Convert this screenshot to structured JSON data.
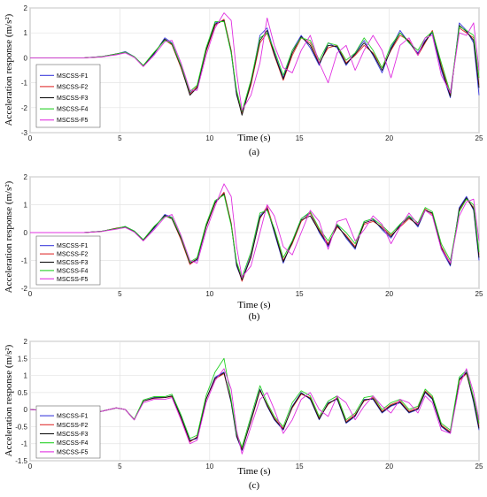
{
  "figure": {
    "x_axis_label": "Time (s)",
    "y_axis_label": "Acceleration response (m/s²)"
  },
  "chart_data": [
    {
      "type": "line",
      "caption": "(a)",
      "xlabel": "Time (s)",
      "ylabel": "Acceleration response (m/s²)",
      "xlim": [
        0,
        25
      ],
      "ylim": [
        -3,
        2
      ],
      "xticks": [
        0,
        5,
        10,
        15,
        20,
        25
      ],
      "yticks": [
        -3,
        -2,
        -1,
        0,
        1,
        2
      ],
      "grid": true,
      "legend_position": "bottom-left",
      "x": [
        0,
        1,
        2,
        3,
        4,
        4.8,
        5.3,
        5.8,
        6.3,
        6.9,
        7.5,
        7.9,
        8.4,
        8.9,
        9.3,
        9.8,
        10.3,
        10.8,
        11.2,
        11.5,
        11.8,
        12.3,
        12.8,
        13.2,
        13.6,
        14.1,
        14.6,
        15.1,
        15.6,
        16.1,
        16.6,
        17.1,
        17.6,
        18.1,
        18.6,
        19.1,
        19.6,
        20.1,
        20.6,
        21.1,
        21.6,
        22.0,
        22.4,
        22.9,
        23.4,
        23.9,
        24.3,
        24.7,
        25
      ],
      "series": [
        {
          "name": "MSCSS-F1",
          "color": "#3b3bdc",
          "values": [
            0,
            0,
            0,
            0,
            0.05,
            0.15,
            0.25,
            0.05,
            -0.3,
            0.15,
            0.8,
            0.6,
            -0.3,
            -1.4,
            -1.2,
            0.3,
            1.4,
            1.5,
            0.2,
            -1.5,
            -2.2,
            -1.0,
            0.9,
            1.2,
            0.2,
            -0.8,
            0.3,
            0.9,
            0.4,
            -0.3,
            0.6,
            0.4,
            -0.3,
            0.2,
            0.7,
            0.1,
            -0.6,
            0.4,
            1.1,
            0.6,
            0.2,
            0.7,
            1.0,
            -0.5,
            -1.6,
            1.4,
            1.1,
            0.6,
            -1.5
          ]
        },
        {
          "name": "MSCSS-F2",
          "color": "#e03030",
          "values": [
            0,
            0,
            0,
            0,
            0.04,
            0.15,
            0.22,
            0.04,
            -0.32,
            0.2,
            0.72,
            0.52,
            -0.4,
            -1.45,
            -1.15,
            0.25,
            1.3,
            1.55,
            0.3,
            -1.4,
            -2.25,
            -1.1,
            0.6,
            1.0,
            0.1,
            -0.9,
            0.1,
            0.8,
            0.6,
            -0.2,
            0.4,
            0.5,
            -0.2,
            0.1,
            0.5,
            0.2,
            -0.4,
            0.3,
            0.9,
            0.7,
            0.1,
            0.6,
            1.1,
            -0.3,
            -1.5,
            1.2,
            1.0,
            0.8,
            -1.1
          ]
        },
        {
          "name": "MSCSS-F3",
          "color": "#111111",
          "values": [
            0,
            0,
            0,
            0,
            0.05,
            0.16,
            0.22,
            0.03,
            -0.32,
            0.18,
            0.75,
            0.55,
            -0.35,
            -1.5,
            -1.2,
            0.3,
            1.35,
            1.5,
            0.25,
            -1.45,
            -2.3,
            -1.0,
            0.7,
            1.1,
            0.15,
            -0.85,
            0.2,
            0.85,
            0.5,
            -0.25,
            0.5,
            0.45,
            -0.25,
            0.15,
            0.6,
            0.15,
            -0.5,
            0.35,
            1.0,
            0.65,
            0.15,
            0.65,
            1.05,
            -0.4,
            -1.55,
            1.3,
            1.05,
            0.7,
            -1.2
          ]
        },
        {
          "name": "MSCSS-F4",
          "color": "#25d025",
          "values": [
            0,
            0,
            0,
            0,
            0.05,
            0.15,
            0.23,
            0.05,
            -0.3,
            0.22,
            0.7,
            0.58,
            -0.3,
            -1.35,
            -1.1,
            0.4,
            1.45,
            1.45,
            0.2,
            -1.3,
            -2.15,
            -0.9,
            0.8,
            1.0,
            0.3,
            -0.7,
            0.3,
            0.8,
            0.7,
            -0.1,
            0.6,
            0.5,
            -0.1,
            0.2,
            0.8,
            0.3,
            -0.4,
            0.5,
            1.0,
            0.6,
            0.3,
            0.8,
            1.05,
            -0.2,
            -1.4,
            1.25,
            1.1,
            0.9,
            -0.8
          ]
        },
        {
          "name": "MSCSS-F5",
          "color": "#e030e0",
          "values": [
            0,
            0,
            0,
            0,
            0.04,
            0.12,
            0.2,
            0.02,
            -0.35,
            0.1,
            0.65,
            0.7,
            -0.2,
            -1.3,
            -1.3,
            0.1,
            1.2,
            1.8,
            1.5,
            -0.6,
            -2.1,
            -1.5,
            -0.2,
            1.6,
            0.5,
            -0.4,
            -0.6,
            0.3,
            0.9,
            -0.2,
            -1.0,
            0.2,
            0.5,
            -0.5,
            0.3,
            0.9,
            0.3,
            -0.8,
            0.5,
            0.8,
            0.1,
            0.8,
            0.9,
            -0.7,
            -1.4,
            1.0,
            0.9,
            1.4,
            -0.5
          ]
        }
      ]
    },
    {
      "type": "line",
      "caption": "(b)",
      "xlabel": "Time (s)",
      "ylabel": "Acceleration response (m/s²)",
      "xlim": [
        0,
        25
      ],
      "ylim": [
        -2,
        2
      ],
      "xticks": [
        0,
        5,
        10,
        15,
        20,
        25
      ],
      "yticks": [
        -2,
        -1,
        0,
        1,
        2
      ],
      "grid": true,
      "legend_position": "bottom-left",
      "x": [
        0,
        1,
        2,
        3,
        4,
        4.8,
        5.3,
        5.8,
        6.3,
        6.9,
        7.5,
        7.9,
        8.4,
        8.9,
        9.3,
        9.8,
        10.3,
        10.8,
        11.2,
        11.5,
        11.8,
        12.3,
        12.8,
        13.2,
        13.6,
        14.1,
        14.6,
        15.1,
        15.6,
        16.1,
        16.6,
        17.1,
        17.6,
        18.1,
        18.6,
        19.1,
        19.6,
        20.1,
        20.6,
        21.1,
        21.6,
        22.0,
        22.4,
        22.9,
        23.4,
        23.9,
        24.3,
        24.7,
        25
      ],
      "series": [
        {
          "name": "MSCSS-F1",
          "color": "#3b3bdc",
          "values": [
            0,
            0,
            0,
            0,
            0.05,
            0.15,
            0.22,
            0.06,
            -0.25,
            0.15,
            0.65,
            0.55,
            -0.2,
            -1.1,
            -1.0,
            0.2,
            1.1,
            1.4,
            0.3,
            -1.2,
            -1.7,
            -0.8,
            0.6,
            0.9,
            0.0,
            -1.1,
            -0.3,
            0.5,
            0.7,
            0.0,
            -0.5,
            0.3,
            -0.2,
            -0.6,
            0.4,
            0.5,
            0.1,
            -0.2,
            0.3,
            0.6,
            0.2,
            0.8,
            0.7,
            -0.6,
            -1.2,
            0.9,
            1.3,
            0.8,
            -1.0
          ]
        },
        {
          "name": "MSCSS-F2",
          "color": "#e03030",
          "values": [
            0,
            0,
            0,
            0,
            0.04,
            0.16,
            0.21,
            0.05,
            -0.27,
            0.2,
            0.6,
            0.5,
            -0.25,
            -1.15,
            -0.95,
            0.2,
            1.05,
            1.45,
            0.35,
            -1.1,
            -1.75,
            -0.85,
            0.5,
            0.95,
            0.1,
            -1.0,
            -0.4,
            0.4,
            0.7,
            0.1,
            -0.4,
            0.2,
            -0.1,
            -0.5,
            0.3,
            0.4,
            0.2,
            -0.1,
            0.2,
            0.5,
            0.3,
            0.85,
            0.65,
            -0.5,
            -1.1,
            0.8,
            1.2,
            0.9,
            -0.8
          ]
        },
        {
          "name": "MSCSS-F3",
          "color": "#111111",
          "values": [
            0,
            0,
            0,
            0,
            0.05,
            0.15,
            0.2,
            0.04,
            -0.27,
            0.18,
            0.62,
            0.5,
            -0.2,
            -1.1,
            -0.95,
            0.22,
            1.08,
            1.4,
            0.3,
            -1.15,
            -1.7,
            -0.9,
            0.55,
            0.85,
            0.05,
            -1.05,
            -0.35,
            0.45,
            0.6,
            0.05,
            -0.45,
            0.25,
            -0.15,
            -0.55,
            0.35,
            0.45,
            0.15,
            -0.15,
            0.25,
            0.55,
            0.25,
            0.8,
            0.7,
            -0.55,
            -1.15,
            0.85,
            1.25,
            0.85,
            -0.9
          ]
        },
        {
          "name": "MSCSS-F4",
          "color": "#25d025",
          "values": [
            0,
            0,
            0,
            0,
            0.05,
            0.14,
            0.22,
            0.06,
            -0.25,
            0.22,
            0.58,
            0.55,
            -0.15,
            -1.05,
            -0.9,
            0.3,
            1.15,
            1.35,
            0.25,
            -1.05,
            -1.6,
            -0.7,
            0.7,
            0.8,
            0.15,
            -0.9,
            -0.3,
            0.5,
            0.75,
            0.15,
            -0.3,
            0.3,
            0.0,
            -0.4,
            0.4,
            0.5,
            0.25,
            -0.05,
            0.3,
            0.6,
            0.35,
            0.9,
            0.75,
            -0.4,
            -1.0,
            0.75,
            1.2,
            1.0,
            -0.7
          ]
        },
        {
          "name": "MSCSS-F5",
          "color": "#e030e0",
          "values": [
            0,
            0,
            0,
            0,
            0.04,
            0.12,
            0.18,
            0.02,
            -0.3,
            0.1,
            0.55,
            0.65,
            -0.1,
            -1.0,
            -1.1,
            0.05,
            0.95,
            1.75,
            1.3,
            -0.5,
            -1.6,
            -1.2,
            0.0,
            1.0,
            0.6,
            -0.5,
            -0.8,
            0.0,
            0.8,
            0.4,
            -0.6,
            0.4,
            0.5,
            -0.3,
            0.1,
            0.6,
            0.3,
            -0.4,
            0.2,
            0.7,
            0.3,
            0.8,
            0.6,
            -0.6,
            -1.1,
            0.6,
            1.1,
            1.2,
            -0.3
          ]
        }
      ]
    },
    {
      "type": "line",
      "caption": "(c)",
      "xlabel": "Time (s)",
      "ylabel": "Acceleration response (m/s²)",
      "xlim": [
        0,
        25
      ],
      "ylim": [
        -1.5,
        2
      ],
      "xticks": [
        0,
        5,
        10,
        15,
        20,
        25
      ],
      "yticks": [
        -1.5,
        -1,
        -0.5,
        0,
        0.5,
        1,
        1.5,
        2
      ],
      "grid": true,
      "legend_position": "bottom-left",
      "x": [
        0,
        1,
        2,
        3,
        4,
        4.8,
        5.3,
        5.8,
        6.3,
        6.9,
        7.5,
        7.9,
        8.4,
        8.9,
        9.3,
        9.8,
        10.3,
        10.8,
        11.2,
        11.5,
        11.8,
        12.3,
        12.8,
        13.2,
        13.6,
        14.1,
        14.6,
        15.1,
        15.6,
        16.1,
        16.6,
        17.1,
        17.6,
        18.1,
        18.6,
        19.1,
        19.6,
        20.1,
        20.6,
        21.1,
        21.6,
        22.0,
        22.4,
        22.9,
        23.4,
        23.9,
        24.3,
        24.7,
        25
      ],
      "series": [
        {
          "name": "MSCSS-F1",
          "color": "#3b3bdc",
          "values": [
            0,
            -0.03,
            -0.05,
            -0.1,
            -0.05,
            0.05,
            0.0,
            -0.3,
            0.25,
            0.35,
            0.35,
            0.4,
            -0.2,
            -0.9,
            -0.85,
            0.3,
            0.95,
            1.1,
            0.2,
            -0.8,
            -1.2,
            -0.3,
            0.6,
            0.1,
            -0.3,
            -0.6,
            0.1,
            0.5,
            0.3,
            -0.3,
            0.2,
            0.3,
            -0.4,
            -0.2,
            0.3,
            0.3,
            -0.1,
            0.1,
            0.2,
            -0.1,
            0.0,
            0.5,
            0.3,
            -0.5,
            -0.7,
            0.9,
            1.1,
            0.2,
            -0.6
          ]
        },
        {
          "name": "MSCSS-F2",
          "color": "#e03030",
          "values": [
            0,
            -0.03,
            -0.05,
            -0.1,
            -0.05,
            0.05,
            0.0,
            -0.3,
            0.25,
            0.33,
            0.35,
            0.38,
            -0.25,
            -0.95,
            -0.8,
            0.3,
            0.9,
            1.05,
            0.25,
            -0.75,
            -1.15,
            -0.35,
            0.55,
            0.15,
            -0.25,
            -0.55,
            0.05,
            0.45,
            0.35,
            -0.25,
            0.15,
            0.35,
            -0.35,
            -0.15,
            0.25,
            0.35,
            -0.05,
            0.15,
            0.25,
            -0.05,
            0.05,
            0.55,
            0.35,
            -0.45,
            -0.65,
            0.85,
            1.05,
            0.3,
            -0.5
          ]
        },
        {
          "name": "MSCSS-F3",
          "color": "#111111",
          "values": [
            0,
            -0.03,
            -0.05,
            -0.1,
            -0.05,
            0.05,
            0.0,
            -0.3,
            0.25,
            0.34,
            0.35,
            0.4,
            -0.22,
            -0.92,
            -0.82,
            0.3,
            0.92,
            1.08,
            0.22,
            -0.78,
            -1.18,
            -0.32,
            0.58,
            0.12,
            -0.28,
            -0.58,
            0.08,
            0.48,
            0.32,
            -0.28,
            0.18,
            0.32,
            -0.38,
            -0.18,
            0.28,
            0.32,
            -0.08,
            0.12,
            0.22,
            -0.08,
            0.02,
            0.52,
            0.32,
            -0.48,
            -0.68,
            0.88,
            1.08,
            0.25,
            -0.55
          ]
        },
        {
          "name": "MSCSS-F4",
          "color": "#25d025",
          "values": [
            0,
            -0.03,
            -0.05,
            -0.1,
            -0.05,
            0.05,
            0.0,
            -0.28,
            0.28,
            0.38,
            0.38,
            0.45,
            -0.15,
            -0.85,
            -0.75,
            0.4,
            1.1,
            1.5,
            0.3,
            -0.7,
            -1.1,
            -0.2,
            0.7,
            0.2,
            -0.2,
            -0.5,
            0.2,
            0.55,
            0.4,
            -0.2,
            0.25,
            0.4,
            -0.3,
            -0.1,
            0.35,
            0.4,
            0.0,
            0.2,
            0.3,
            0.0,
            0.1,
            0.6,
            0.4,
            -0.4,
            -0.6,
            0.95,
            1.15,
            0.35,
            -0.4
          ]
        },
        {
          "name": "MSCSS-F5",
          "color": "#e030e0",
          "values": [
            0,
            -0.03,
            -0.05,
            -0.1,
            -0.05,
            0.05,
            0.0,
            -0.3,
            0.2,
            0.3,
            0.3,
            0.35,
            -0.3,
            -1.0,
            -0.9,
            0.2,
            0.85,
            1.2,
            0.6,
            -0.6,
            -1.3,
            -0.5,
            0.3,
            0.5,
            0.0,
            -0.7,
            -0.3,
            0.3,
            0.5,
            0.0,
            -0.2,
            0.4,
            0.2,
            -0.3,
            0.1,
            0.4,
            0.1,
            -0.1,
            0.3,
            0.2,
            -0.1,
            0.4,
            0.2,
            -0.6,
            -0.7,
            0.7,
            1.2,
            0.5,
            -0.3
          ]
        }
      ]
    }
  ]
}
